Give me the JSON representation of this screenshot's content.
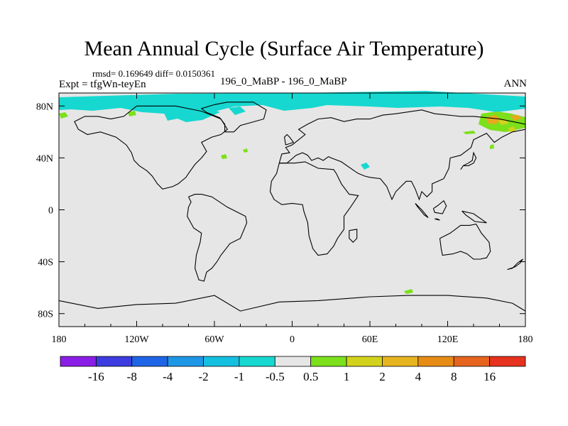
{
  "title": "Mean Annual Cycle (Surface Air Temperature)",
  "stats": "rmsd= 0.169649 diff= 0.0150361",
  "expt": "Expt = tfgWn-teyEn",
  "subtitle": "196_0_MaBP - 196_0_MaBP",
  "season": "ANN",
  "colors": {
    "background": "#e6e6e6",
    "coast": "#000000",
    "cyan": "#16d8d0",
    "green": "#7ce01a",
    "orange": "#e8a820",
    "yellow": "#d2d21c"
  },
  "chart_data": {
    "type": "heatmap",
    "projection": "cylindrical-equidistant",
    "x_range": [
      -180,
      180
    ],
    "y_range": [
      -90,
      90
    ],
    "x_ticks": [
      {
        "value": -180,
        "label": "180"
      },
      {
        "value": -120,
        "label": "120W"
      },
      {
        "value": -60,
        "label": "60W"
      },
      {
        "value": 0,
        "label": "0"
      },
      {
        "value": 60,
        "label": "60E"
      },
      {
        "value": 120,
        "label": "120E"
      },
      {
        "value": 180,
        "label": "180"
      }
    ],
    "y_ticks": [
      {
        "value": 80,
        "label": "80N"
      },
      {
        "value": 40,
        "label": "40N"
      },
      {
        "value": 0,
        "label": "0"
      },
      {
        "value": -40,
        "label": "40S"
      },
      {
        "value": -80,
        "label": "80S"
      }
    ],
    "colorbar": {
      "colors": [
        "#8a1ee6",
        "#3c3ce0",
        "#1e64e6",
        "#1e96e6",
        "#14c0e0",
        "#16d8d0",
        "#e6e6e6",
        "#7ce01a",
        "#d2d21c",
        "#e6b41e",
        "#e68c14",
        "#e6641e",
        "#e6321e"
      ],
      "labels": [
        "-16",
        "-8",
        "-4",
        "-2",
        "-1",
        "-0.5",
        "0.5",
        "1",
        "2",
        "4",
        "8",
        "16"
      ]
    },
    "anomaly_regions": [
      {
        "category": "-0.5 to -1",
        "color": "#16d8d0",
        "lon": [
          -180,
          180
        ],
        "lat": [
          75,
          90
        ],
        "description": "Arctic band cooling"
      },
      {
        "category": "1 to 2",
        "color": "#7ce01a",
        "lon": [
          140,
          180
        ],
        "lat": [
          60,
          75
        ],
        "description": "Northeast Asia warming"
      },
      {
        "category": "4 to 8",
        "color": "#e8a820",
        "lon": [
          150,
          170
        ],
        "lat": [
          65,
          72
        ],
        "description": "Eastern Siberia warm center"
      }
    ],
    "coastlines": [
      [
        [
          -120,
          80
        ],
        [
          -90,
          80
        ],
        [
          -70,
          76
        ],
        [
          -60,
          72
        ],
        [
          -55,
          70
        ],
        [
          -50,
          62
        ],
        [
          -55,
          58
        ],
        [
          -62,
          56
        ],
        [
          -70,
          52
        ],
        [
          -66,
          45
        ],
        [
          -70,
          40
        ],
        [
          -75,
          35
        ],
        [
          -80,
          28
        ],
        [
          -82,
          25
        ],
        [
          -88,
          20
        ],
        [
          -92,
          18
        ],
        [
          -100,
          16
        ],
        [
          -104,
          20
        ],
        [
          -108,
          26
        ],
        [
          -112,
          30
        ],
        [
          -118,
          34
        ],
        [
          -122,
          38
        ],
        [
          -124,
          44
        ],
        [
          -128,
          50
        ],
        [
          -136,
          56
        ],
        [
          -148,
          60
        ],
        [
          -158,
          58
        ],
        [
          -165,
          62
        ],
        [
          -168,
          68
        ],
        [
          -160,
          72
        ],
        [
          -150,
          72
        ],
        [
          -140,
          70
        ],
        [
          -130,
          72
        ],
        [
          -120,
          80
        ]
      ],
      [
        [
          -80,
          10
        ],
        [
          -75,
          12
        ],
        [
          -70,
          12
        ],
        [
          -62,
          10
        ],
        [
          -50,
          2
        ],
        [
          -36,
          -5
        ],
        [
          -35,
          -10
        ],
        [
          -40,
          -22
        ],
        [
          -48,
          -26
        ],
        [
          -55,
          -35
        ],
        [
          -58,
          -40
        ],
        [
          -62,
          -45
        ],
        [
          -66,
          -48
        ],
        [
          -68,
          -55
        ],
        [
          -72,
          -54
        ],
        [
          -75,
          -45
        ],
        [
          -74,
          -35
        ],
        [
          -71,
          -25
        ],
        [
          -70,
          -18
        ],
        [
          -76,
          -14
        ],
        [
          -81,
          -5
        ],
        [
          -80,
          2
        ],
        [
          -78,
          6
        ],
        [
          -80,
          10
        ]
      ],
      [
        [
          -10,
          36
        ],
        [
          -6,
          36
        ],
        [
          2,
          36
        ],
        [
          10,
          37
        ],
        [
          20,
          32
        ],
        [
          32,
          31
        ],
        [
          34,
          28
        ],
        [
          38,
          20
        ],
        [
          44,
          12
        ],
        [
          51,
          11
        ],
        [
          45,
          2
        ],
        [
          40,
          -5
        ],
        [
          40,
          -15
        ],
        [
          35,
          -22
        ],
        [
          32,
          -28
        ],
        [
          27,
          -34
        ],
        [
          20,
          -35
        ],
        [
          16,
          -30
        ],
        [
          13,
          -20
        ],
        [
          12,
          -10
        ],
        [
          9,
          -1
        ],
        [
          8,
          4
        ],
        [
          0,
          5
        ],
        [
          -8,
          4
        ],
        [
          -14,
          8
        ],
        [
          -17,
          14
        ],
        [
          -16,
          22
        ],
        [
          -12,
          28
        ],
        [
          -10,
          36
        ]
      ],
      [
        [
          -10,
          36
        ],
        [
          -8,
          43
        ],
        [
          -2,
          44
        ],
        [
          -5,
          48
        ],
        [
          0,
          50
        ],
        [
          5,
          54
        ],
        [
          10,
          58
        ],
        [
          5,
          62
        ],
        [
          12,
          66
        ],
        [
          20,
          70
        ],
        [
          30,
          71
        ],
        [
          40,
          68
        ],
        [
          50,
          70
        ],
        [
          60,
          70
        ],
        [
          70,
          73
        ],
        [
          80,
          74
        ],
        [
          100,
          77
        ],
        [
          110,
          74
        ],
        [
          130,
          72
        ],
        [
          140,
          72
        ],
        [
          160,
          70
        ],
        [
          170,
          68
        ],
        [
          180,
          66
        ],
        [
          180,
          62
        ],
        [
          170,
          60
        ],
        [
          162,
          56
        ],
        [
          156,
          52
        ],
        [
          150,
          59
        ],
        [
          140,
          54
        ],
        [
          138,
          48
        ],
        [
          130,
          42
        ],
        [
          122,
          40
        ],
        [
          121,
          32
        ],
        [
          117,
          24
        ],
        [
          108,
          20
        ],
        [
          108,
          14
        ],
        [
          104,
          10
        ],
        [
          100,
          14
        ],
        [
          98,
          8
        ],
        [
          95,
          16
        ],
        [
          92,
          22
        ],
        [
          88,
          22
        ],
        [
          80,
          14
        ],
        [
          77,
          8
        ],
        [
          73,
          18
        ],
        [
          68,
          24
        ],
        [
          60,
          25
        ],
        [
          56,
          26
        ],
        [
          51,
          28
        ],
        [
          48,
          30
        ],
        [
          38,
          37
        ],
        [
          30,
          40
        ],
        [
          28,
          41
        ],
        [
          24,
          38
        ],
        [
          20,
          40
        ],
        [
          15,
          38
        ],
        [
          12,
          42
        ],
        [
          8,
          44
        ],
        [
          3,
          42
        ],
        [
          -4,
          36
        ],
        [
          -10,
          36
        ]
      ],
      [
        [
          114,
          -22
        ],
        [
          122,
          -18
        ],
        [
          130,
          -12
        ],
        [
          137,
          -12
        ],
        [
          142,
          -11
        ],
        [
          146,
          -18
        ],
        [
          152,
          -25
        ],
        [
          153,
          -32
        ],
        [
          150,
          -37
        ],
        [
          145,
          -38
        ],
        [
          140,
          -38
        ],
        [
          135,
          -34
        ],
        [
          130,
          -32
        ],
        [
          124,
          -34
        ],
        [
          116,
          -35
        ],
        [
          115,
          -30
        ],
        [
          114,
          -22
        ]
      ],
      [
        [
          -52,
          60
        ],
        [
          -45,
          60
        ],
        [
          -40,
          65
        ],
        [
          -22,
          70
        ],
        [
          -20,
          77
        ],
        [
          -30,
          83
        ],
        [
          -50,
          83
        ],
        [
          -60,
          81
        ],
        [
          -70,
          78
        ],
        [
          -66,
          75
        ],
        [
          -56,
          71
        ],
        [
          -52,
          66
        ],
        [
          -52,
          60
        ]
      ],
      [
        [
          166,
          -46
        ],
        [
          170,
          -45
        ],
        [
          174,
          -41
        ],
        [
          178,
          -38
        ],
        [
          176,
          -41
        ],
        [
          172,
          -44
        ],
        [
          166,
          -46
        ]
      ],
      [
        [
          -180,
          -70
        ],
        [
          -150,
          -76
        ],
        [
          -120,
          -73
        ],
        [
          -90,
          -72
        ],
        [
          -60,
          -66
        ],
        [
          -40,
          -78
        ],
        [
          -10,
          -71
        ],
        [
          20,
          -70
        ],
        [
          60,
          -67
        ],
        [
          90,
          -66
        ],
        [
          120,
          -66
        ],
        [
          150,
          -68
        ],
        [
          170,
          -72
        ],
        [
          180,
          -78
        ]
      ],
      [
        [
          44,
          -16
        ],
        [
          50,
          -15
        ],
        [
          50,
          -22
        ],
        [
          47,
          -25
        ],
        [
          44,
          -22
        ],
        [
          44,
          -16
        ]
      ],
      [
        [
          -5,
          50
        ],
        [
          1,
          52
        ],
        [
          -2,
          56
        ],
        [
          -4,
          58
        ],
        [
          -6,
          56
        ],
        [
          -5,
          50
        ]
      ],
      [
        [
          130,
          31
        ],
        [
          132,
          34
        ],
        [
          136,
          34
        ],
        [
          140,
          36
        ],
        [
          142,
          40
        ],
        [
          140,
          44
        ],
        [
          139,
          38
        ],
        [
          136,
          36
        ],
        [
          132,
          34
        ],
        [
          130,
          31
        ]
      ],
      [
        [
          95,
          5
        ],
        [
          100,
          0
        ],
        [
          105,
          -6
        ],
        [
          102,
          -4
        ],
        [
          97,
          2
        ],
        [
          95,
          5
        ]
      ],
      [
        [
          110,
          -7
        ],
        [
          114,
          -8
        ],
        [
          112,
          -7
        ],
        [
          110,
          -7
        ]
      ],
      [
        [
          109,
          1
        ],
        [
          112,
          3
        ],
        [
          117,
          7
        ],
        [
          119,
          3
        ],
        [
          116,
          -3
        ],
        [
          110,
          -2
        ],
        [
          109,
          1
        ]
      ],
      [
        [
          131,
          -1
        ],
        [
          140,
          -3
        ],
        [
          150,
          -10
        ],
        [
          141,
          -9
        ],
        [
          134,
          -4
        ],
        [
          131,
          -1
        ]
      ]
    ]
  }
}
